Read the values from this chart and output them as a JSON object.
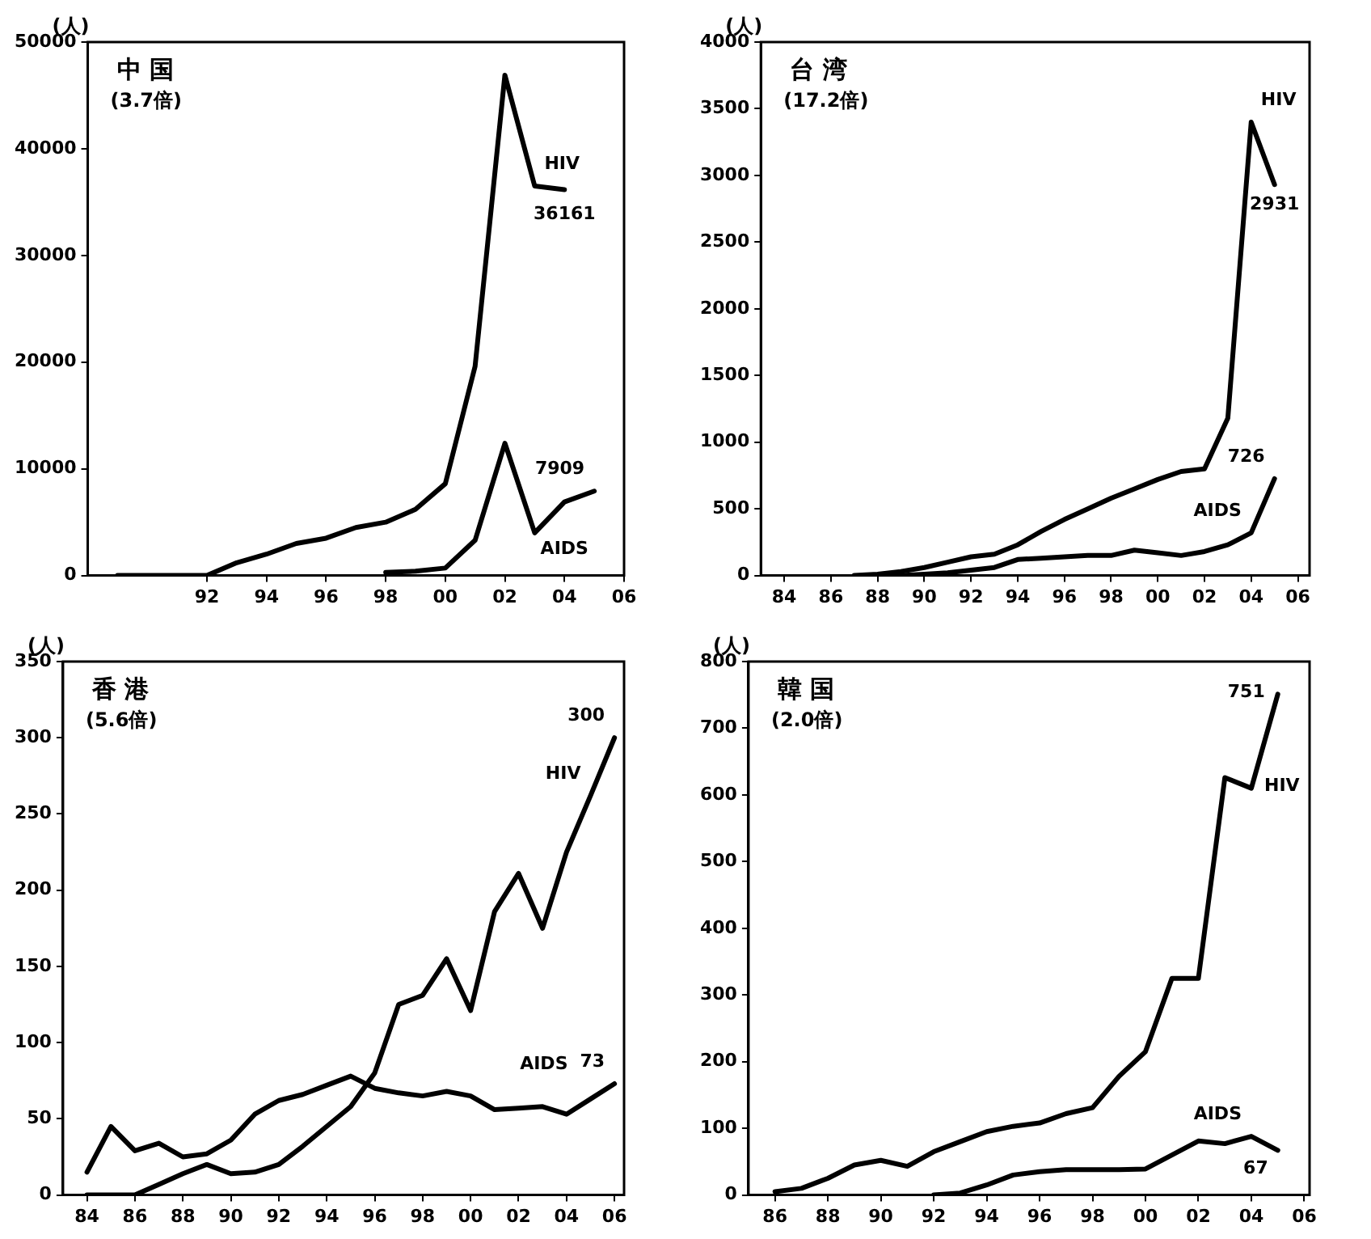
{
  "chart_data": [
    {
      "type": "line",
      "title": "中 国",
      "subtitle": "(3.7倍)",
      "ylabel": "(人)",
      "marker": "none",
      "line_style": "solid",
      "grid": false,
      "legend": false,
      "xlim": [
        1988,
        2006
      ],
      "xticks": [
        {
          "value": 1992,
          "label": "92"
        },
        {
          "value": 1994,
          "label": "94"
        },
        {
          "value": 1996,
          "label": "96"
        },
        {
          "value": 1998,
          "label": "98"
        },
        {
          "value": 2000,
          "label": "00"
        },
        {
          "value": 2002,
          "label": "02"
        },
        {
          "value": 2004,
          "label": "04"
        },
        {
          "value": 2006,
          "label": "06"
        }
      ],
      "ylim": [
        0,
        50000
      ],
      "yticks": [
        0,
        10000,
        20000,
        30000,
        40000,
        50000
      ],
      "series": [
        {
          "name": "HIV",
          "color": "#000000",
          "x": [
            1989,
            1990,
            1991,
            1992,
            1993,
            1994,
            1995,
            1996,
            1997,
            1998,
            1999,
            2000,
            2001,
            2002,
            2003,
            2004
          ],
          "values": [
            0,
            0,
            0,
            0,
            1200,
            2000,
            3000,
            3500,
            4500,
            5000,
            6200,
            8600,
            19600,
            46900,
            36500,
            36161
          ],
          "value_labels": [
            null,
            null,
            null,
            null,
            null,
            null,
            null,
            null,
            null,
            null,
            null,
            null,
            null,
            null,
            null,
            "36161"
          ]
        },
        {
          "name": "AIDS",
          "color": "#000000",
          "x": [
            1998,
            1999,
            2000,
            2001,
            2002,
            2003,
            2004,
            2005
          ],
          "values": [
            300,
            400,
            700,
            3300,
            12400,
            4000,
            6900,
            7909
          ],
          "value_labels": [
            null,
            null,
            null,
            null,
            null,
            null,
            null,
            "7909"
          ]
        }
      ]
    },
    {
      "type": "line",
      "title": "台 湾",
      "subtitle": "(17.2倍)",
      "ylabel": "(人)",
      "marker": "none",
      "line_style": "solid",
      "grid": false,
      "legend": false,
      "xlim": [
        1983,
        2006.5
      ],
      "xticks": [
        {
          "value": 1984,
          "label": "84"
        },
        {
          "value": 1986,
          "label": "86"
        },
        {
          "value": 1988,
          "label": "88"
        },
        {
          "value": 1990,
          "label": "90"
        },
        {
          "value": 1992,
          "label": "92"
        },
        {
          "value": 1994,
          "label": "94"
        },
        {
          "value": 1996,
          "label": "96"
        },
        {
          "value": 1998,
          "label": "98"
        },
        {
          "value": 2000,
          "label": "00"
        },
        {
          "value": 2002,
          "label": "02"
        },
        {
          "value": 2004,
          "label": "04"
        },
        {
          "value": 2006,
          "label": "06"
        }
      ],
      "ylim": [
        0,
        4000
      ],
      "yticks": [
        0,
        500,
        1000,
        1500,
        2000,
        2500,
        3000,
        3500,
        4000
      ],
      "series": [
        {
          "name": "HIV",
          "color": "#000000",
          "x": [
            1987,
            1988,
            1989,
            1990,
            1991,
            1992,
            1993,
            1994,
            1995,
            1996,
            1997,
            1998,
            1999,
            2000,
            2001,
            2002,
            2003,
            2004,
            2005
          ],
          "values": [
            0,
            10,
            30,
            60,
            100,
            140,
            160,
            230,
            330,
            420,
            500,
            580,
            650,
            720,
            780,
            800,
            1180,
            3400,
            2931
          ],
          "value_labels": [
            null,
            null,
            null,
            null,
            null,
            null,
            null,
            null,
            null,
            null,
            null,
            null,
            null,
            null,
            null,
            null,
            null,
            null,
            "2931"
          ]
        },
        {
          "name": "AIDS",
          "color": "#000000",
          "x": [
            1989,
            1990,
            1991,
            1992,
            1993,
            1994,
            1995,
            1996,
            1997,
            1998,
            1999,
            2000,
            2001,
            2002,
            2003,
            2004,
            2005
          ],
          "values": [
            0,
            10,
            20,
            40,
            60,
            120,
            130,
            140,
            150,
            150,
            190,
            170,
            150,
            180,
            230,
            320,
            726
          ],
          "value_labels": [
            null,
            null,
            null,
            null,
            null,
            null,
            null,
            null,
            null,
            null,
            null,
            null,
            null,
            null,
            null,
            null,
            "726"
          ]
        }
      ]
    },
    {
      "type": "line",
      "title": "香 港",
      "subtitle": "(5.6倍)",
      "ylabel": "(人)",
      "marker": "none",
      "line_style": "solid",
      "grid": false,
      "legend": false,
      "xlim": [
        1983,
        2006.4
      ],
      "xticks": [
        {
          "value": 1984,
          "label": "84"
        },
        {
          "value": 1986,
          "label": "86"
        },
        {
          "value": 1988,
          "label": "88"
        },
        {
          "value": 1990,
          "label": "90"
        },
        {
          "value": 1992,
          "label": "92"
        },
        {
          "value": 1994,
          "label": "94"
        },
        {
          "value": 1996,
          "label": "96"
        },
        {
          "value": 1998,
          "label": "98"
        },
        {
          "value": 2000,
          "label": "00"
        },
        {
          "value": 2002,
          "label": "02"
        },
        {
          "value": 2004,
          "label": "04"
        },
        {
          "value": 2006,
          "label": "06"
        }
      ],
      "ylim": [
        0,
        350
      ],
      "yticks": [
        0,
        50,
        100,
        150,
        200,
        250,
        300,
        350
      ],
      "series": [
        {
          "name": "HIV",
          "color": "#000000",
          "x": [
            1984,
            1985,
            1986,
            1987,
            1988,
            1989,
            1990,
            1991,
            1992,
            1993,
            1994,
            1995,
            1996,
            1997,
            1998,
            1999,
            2000,
            2001,
            2002,
            2003,
            2004,
            2005,
            2006
          ],
          "values": [
            0,
            0,
            0,
            7,
            14,
            20,
            14,
            15,
            20,
            32,
            45,
            58,
            80,
            125,
            131,
            155,
            121,
            186,
            211,
            175,
            225,
            262,
            300
          ],
          "value_labels": [
            null,
            null,
            null,
            null,
            null,
            null,
            null,
            null,
            null,
            null,
            null,
            null,
            null,
            null,
            null,
            null,
            null,
            null,
            null,
            null,
            null,
            null,
            "300"
          ]
        },
        {
          "name": "AIDS",
          "color": "#000000",
          "x": [
            1984,
            1985,
            1986,
            1987,
            1988,
            1989,
            1990,
            1991,
            1992,
            1993,
            1994,
            1995,
            1996,
            1997,
            1998,
            1999,
            2000,
            2001,
            2002,
            2003,
            2004,
            2005,
            2006
          ],
          "values": [
            15,
            45,
            29,
            34,
            25,
            27,
            36,
            53,
            62,
            66,
            72,
            78,
            70,
            67,
            65,
            68,
            65,
            56,
            57,
            58,
            53,
            63,
            73
          ],
          "value_labels": [
            null,
            null,
            null,
            null,
            null,
            null,
            null,
            null,
            null,
            null,
            null,
            null,
            null,
            null,
            null,
            null,
            null,
            null,
            null,
            null,
            null,
            null,
            "73"
          ]
        }
      ]
    },
    {
      "type": "line",
      "title": "韓 国",
      "subtitle": "(2.0倍)",
      "ylabel": "(人)",
      "marker": "none",
      "line_style": "solid",
      "grid": false,
      "legend": false,
      "xlim": [
        1985,
        2006.2
      ],
      "xticks": [
        {
          "value": 1986,
          "label": "86"
        },
        {
          "value": 1988,
          "label": "88"
        },
        {
          "value": 1990,
          "label": "90"
        },
        {
          "value": 1992,
          "label": "92"
        },
        {
          "value": 1994,
          "label": "94"
        },
        {
          "value": 1996,
          "label": "96"
        },
        {
          "value": 1998,
          "label": "98"
        },
        {
          "value": 2000,
          "label": "00"
        },
        {
          "value": 2002,
          "label": "02"
        },
        {
          "value": 2004,
          "label": "04"
        },
        {
          "value": 2006,
          "label": "06"
        }
      ],
      "ylim": [
        0,
        800
      ],
      "yticks": [
        0,
        100,
        200,
        300,
        400,
        500,
        600,
        700,
        800
      ],
      "series": [
        {
          "name": "HIV",
          "color": "#000000",
          "x": [
            1986,
            1987,
            1988,
            1989,
            1990,
            1991,
            1992,
            1993,
            1994,
            1995,
            1996,
            1997,
            1998,
            1999,
            2000,
            2001,
            2002,
            2003,
            2004,
            2005
          ],
          "values": [
            5,
            10,
            25,
            45,
            52,
            43,
            65,
            80,
            95,
            103,
            108,
            122,
            131,
            178,
            215,
            325,
            325,
            626,
            610,
            751
          ],
          "value_labels": [
            null,
            null,
            null,
            null,
            null,
            null,
            null,
            null,
            null,
            null,
            null,
            null,
            null,
            null,
            null,
            null,
            null,
            null,
            null,
            "751"
          ]
        },
        {
          "name": "AIDS",
          "color": "#000000",
          "x": [
            1992,
            1993,
            1994,
            1995,
            1996,
            1997,
            1998,
            1999,
            2000,
            2001,
            2002,
            2003,
            2004,
            2005
          ],
          "values": [
            0,
            3,
            15,
            30,
            35,
            38,
            38,
            38,
            39,
            60,
            81,
            77,
            88,
            67
          ],
          "value_labels": [
            null,
            null,
            null,
            null,
            null,
            null,
            null,
            null,
            null,
            null,
            null,
            null,
            null,
            "67"
          ]
        }
      ]
    }
  ]
}
